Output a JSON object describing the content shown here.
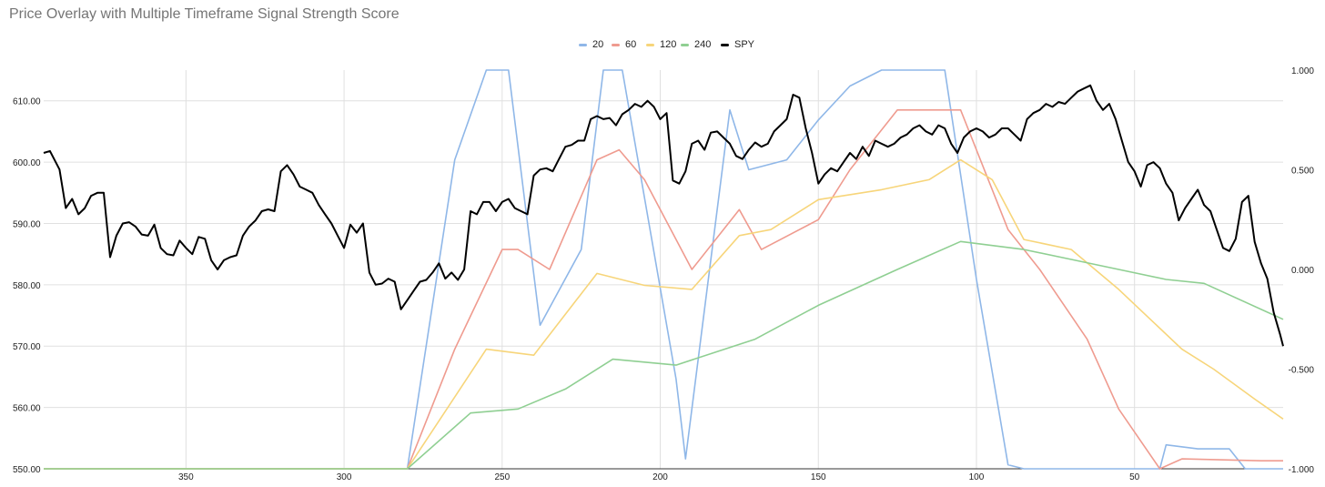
{
  "chart_data": {
    "type": "line",
    "title": "Price Overlay with Multiple Timeframe Signal Strength Score",
    "xlabel": "",
    "ylabel": "",
    "x_reversed": true,
    "xlim": [
      395,
      3
    ],
    "ylim_left": [
      550,
      615
    ],
    "ylim_right": [
      -1.0,
      1.0
    ],
    "x_ticks": [
      "350",
      "300",
      "250",
      "200",
      "150",
      "100",
      "50"
    ],
    "x_tick_values": [
      350,
      300,
      250,
      200,
      150,
      100,
      50
    ],
    "y_left_ticks": [
      "610.00",
      "600.00",
      "590.00",
      "580.00",
      "570.00",
      "560.00",
      "550.00"
    ],
    "y_left_tick_values": [
      610,
      600,
      590,
      580,
      570,
      560,
      550
    ],
    "y_right_ticks": [
      "1.000",
      "0.500",
      "0.000",
      "-0.500",
      "-1.000"
    ],
    "y_right_tick_values": [
      1.0,
      0.5,
      0.0,
      -0.5,
      -1.0
    ],
    "grid": true,
    "legend_position": "top-center",
    "series": [
      {
        "name": "20",
        "axis": "right",
        "color": "#8fb7e8",
        "points": [
          [
            395,
            -1.0
          ],
          [
            280,
            -1.0
          ],
          [
            265,
            0.55
          ],
          [
            255,
            1.0
          ],
          [
            248,
            1.0
          ],
          [
            238,
            -0.28
          ],
          [
            225,
            0.1
          ],
          [
            218,
            1.0
          ],
          [
            212,
            1.0
          ],
          [
            195,
            -0.55
          ],
          [
            192,
            -0.95
          ],
          [
            178,
            0.8
          ],
          [
            172,
            0.5
          ],
          [
            160,
            0.55
          ],
          [
            150,
            0.75
          ],
          [
            140,
            0.92
          ],
          [
            130,
            1.0
          ],
          [
            110,
            1.0
          ],
          [
            100,
            -0.05
          ],
          [
            90,
            -0.98
          ],
          [
            85,
            -1.0
          ],
          [
            42,
            -1.0
          ],
          [
            40,
            -0.88
          ],
          [
            30,
            -0.9
          ],
          [
            20,
            -0.9
          ],
          [
            15,
            -1.0
          ],
          [
            3,
            -1.0
          ]
        ]
      },
      {
        "name": "60",
        "axis": "right",
        "color": "#ef9b8f",
        "points": [
          [
            395,
            -1.0
          ],
          [
            280,
            -1.0
          ],
          [
            265,
            -0.4
          ],
          [
            250,
            0.1
          ],
          [
            245,
            0.1
          ],
          [
            235,
            0.0
          ],
          [
            220,
            0.55
          ],
          [
            213,
            0.6
          ],
          [
            205,
            0.45
          ],
          [
            190,
            0.0
          ],
          [
            175,
            0.3
          ],
          [
            168,
            0.1
          ],
          [
            150,
            0.25
          ],
          [
            140,
            0.5
          ],
          [
            125,
            0.8
          ],
          [
            115,
            0.8
          ],
          [
            105,
            0.8
          ],
          [
            90,
            0.2
          ],
          [
            80,
            0.0
          ],
          [
            65,
            -0.35
          ],
          [
            55,
            -0.7
          ],
          [
            42,
            -1.0
          ],
          [
            35,
            -0.95
          ],
          [
            10,
            -0.96
          ],
          [
            3,
            -0.96
          ]
        ]
      },
      {
        "name": "120",
        "axis": "right",
        "color": "#f7d57a",
        "points": [
          [
            395,
            -1.0
          ],
          [
            280,
            -1.0
          ],
          [
            255,
            -0.4
          ],
          [
            240,
            -0.43
          ],
          [
            220,
            -0.02
          ],
          [
            205,
            -0.08
          ],
          [
            190,
            -0.1
          ],
          [
            175,
            0.17
          ],
          [
            165,
            0.2
          ],
          [
            150,
            0.35
          ],
          [
            130,
            0.4
          ],
          [
            115,
            0.45
          ],
          [
            105,
            0.55
          ],
          [
            95,
            0.45
          ],
          [
            85,
            0.15
          ],
          [
            70,
            0.1
          ],
          [
            55,
            -0.1
          ],
          [
            45,
            -0.25
          ],
          [
            35,
            -0.4
          ],
          [
            25,
            -0.5
          ],
          [
            12,
            -0.65
          ],
          [
            3,
            -0.75
          ]
        ]
      },
      {
        "name": "240",
        "axis": "right",
        "color": "#8fcf92",
        "points": [
          [
            395,
            -1.0
          ],
          [
            280,
            -1.0
          ],
          [
            260,
            -0.72
          ],
          [
            245,
            -0.7
          ],
          [
            230,
            -0.6
          ],
          [
            215,
            -0.45
          ],
          [
            195,
            -0.48
          ],
          [
            170,
            -0.35
          ],
          [
            150,
            -0.18
          ],
          [
            125,
            0.0
          ],
          [
            105,
            0.14
          ],
          [
            85,
            0.1
          ],
          [
            70,
            0.05
          ],
          [
            55,
            0.0
          ],
          [
            40,
            -0.05
          ],
          [
            28,
            -0.07
          ],
          [
            3,
            -0.25
          ]
        ]
      },
      {
        "name": "SPY",
        "axis": "left",
        "color": "#000000",
        "points": [
          [
            395,
            601.5
          ],
          [
            393,
            601.8
          ],
          [
            392,
            600.8
          ],
          [
            390,
            598.8
          ],
          [
            388,
            592.5
          ],
          [
            386,
            594.0
          ],
          [
            384,
            591.5
          ],
          [
            382,
            592.5
          ],
          [
            380,
            594.5
          ],
          [
            378,
            595.0
          ],
          [
            376,
            595.0
          ],
          [
            374,
            584.5
          ],
          [
            372,
            588.0
          ],
          [
            370,
            590.0
          ],
          [
            368,
            590.2
          ],
          [
            366,
            589.5
          ],
          [
            364,
            588.2
          ],
          [
            362,
            588.0
          ],
          [
            360,
            589.8
          ],
          [
            358,
            586.0
          ],
          [
            356,
            585.0
          ],
          [
            354,
            584.8
          ],
          [
            352,
            587.2
          ],
          [
            350,
            586.0
          ],
          [
            348,
            585.0
          ],
          [
            346,
            587.8
          ],
          [
            344,
            587.5
          ],
          [
            342,
            584.0
          ],
          [
            340,
            582.5
          ],
          [
            338,
            584.0
          ],
          [
            336,
            584.5
          ],
          [
            334,
            584.8
          ],
          [
            332,
            588.0
          ],
          [
            330,
            589.5
          ],
          [
            328,
            590.5
          ],
          [
            326,
            592.0
          ],
          [
            324,
            592.3
          ],
          [
            322,
            592.0
          ],
          [
            320,
            598.5
          ],
          [
            318,
            599.5
          ],
          [
            316,
            598.0
          ],
          [
            314,
            596.0
          ],
          [
            312,
            595.5
          ],
          [
            310,
            595.0
          ],
          [
            308,
            593.0
          ],
          [
            306,
            591.5
          ],
          [
            304,
            590.0
          ],
          [
            302,
            588.0
          ],
          [
            300,
            586.0
          ],
          [
            298,
            589.8
          ],
          [
            296,
            588.5
          ],
          [
            294,
            590.0
          ],
          [
            292,
            582.0
          ],
          [
            290,
            580.0
          ],
          [
            288,
            580.2
          ],
          [
            286,
            581.0
          ],
          [
            284,
            580.5
          ],
          [
            282,
            576.0
          ],
          [
            280,
            577.5
          ],
          [
            278,
            579.0
          ],
          [
            276,
            580.5
          ],
          [
            274,
            580.8
          ],
          [
            272,
            582.0
          ],
          [
            270,
            583.5
          ],
          [
            268,
            581.0
          ],
          [
            266,
            582.0
          ],
          [
            264,
            580.8
          ],
          [
            262,
            582.5
          ],
          [
            260,
            592.0
          ],
          [
            258,
            591.5
          ],
          [
            256,
            593.5
          ],
          [
            254,
            593.5
          ],
          [
            252,
            592.0
          ],
          [
            250,
            593.5
          ],
          [
            248,
            594.0
          ],
          [
            246,
            592.5
          ],
          [
            244,
            592.0
          ],
          [
            242,
            591.5
          ],
          [
            240,
            597.8
          ],
          [
            238,
            598.8
          ],
          [
            236,
            599.0
          ],
          [
            234,
            598.5
          ],
          [
            232,
            600.5
          ],
          [
            230,
            602.5
          ],
          [
            228,
            602.8
          ],
          [
            226,
            603.5
          ],
          [
            224,
            603.5
          ],
          [
            222,
            607.0
          ],
          [
            220,
            607.5
          ],
          [
            218,
            607.0
          ],
          [
            216,
            607.2
          ],
          [
            214,
            606.0
          ],
          [
            212,
            607.8
          ],
          [
            210,
            608.5
          ],
          [
            208,
            609.5
          ],
          [
            206,
            609.0
          ],
          [
            204,
            610.0
          ],
          [
            202,
            609.0
          ],
          [
            200,
            607.0
          ],
          [
            198,
            608.0
          ],
          [
            196,
            597.0
          ],
          [
            194,
            596.5
          ],
          [
            192,
            598.5
          ],
          [
            190,
            603.0
          ],
          [
            188,
            603.5
          ],
          [
            186,
            602.0
          ],
          [
            184,
            604.8
          ],
          [
            182,
            605.0
          ],
          [
            180,
            604.0
          ],
          [
            178,
            603.0
          ],
          [
            176,
            601.0
          ],
          [
            174,
            600.5
          ],
          [
            172,
            602.0
          ],
          [
            170,
            603.2
          ],
          [
            168,
            602.5
          ],
          [
            166,
            603.0
          ],
          [
            164,
            605.0
          ],
          [
            162,
            606.0
          ],
          [
            160,
            607.0
          ],
          [
            158,
            611.0
          ],
          [
            156,
            610.5
          ],
          [
            154,
            605.5
          ],
          [
            152,
            601.5
          ],
          [
            150,
            596.5
          ],
          [
            148,
            598.0
          ],
          [
            146,
            599.0
          ],
          [
            144,
            598.5
          ],
          [
            142,
            600.0
          ],
          [
            140,
            601.5
          ],
          [
            138,
            600.5
          ],
          [
            136,
            602.5
          ],
          [
            134,
            601.0
          ],
          [
            132,
            603.5
          ],
          [
            130,
            603.0
          ],
          [
            128,
            602.5
          ],
          [
            126,
            603.0
          ],
          [
            124,
            604.0
          ],
          [
            122,
            604.5
          ],
          [
            120,
            605.5
          ],
          [
            118,
            606.0
          ],
          [
            116,
            605.0
          ],
          [
            114,
            604.5
          ],
          [
            112,
            606.0
          ],
          [
            110,
            605.5
          ],
          [
            108,
            603.0
          ],
          [
            106,
            601.5
          ],
          [
            104,
            604.0
          ],
          [
            102,
            605.0
          ],
          [
            100,
            605.5
          ],
          [
            98,
            605.0
          ],
          [
            96,
            604.0
          ],
          [
            94,
            604.5
          ],
          [
            92,
            605.5
          ],
          [
            90,
            605.5
          ],
          [
            88,
            604.5
          ],
          [
            86,
            603.5
          ],
          [
            84,
            607.0
          ],
          [
            82,
            608.0
          ],
          [
            80,
            608.5
          ],
          [
            78,
            609.5
          ],
          [
            76,
            609.0
          ],
          [
            74,
            609.8
          ],
          [
            72,
            609.5
          ],
          [
            70,
            610.5
          ],
          [
            68,
            611.5
          ],
          [
            66,
            612.0
          ],
          [
            64,
            612.5
          ],
          [
            62,
            610.0
          ],
          [
            60,
            608.5
          ],
          [
            58,
            609.5
          ],
          [
            56,
            607.0
          ],
          [
            54,
            603.5
          ],
          [
            52,
            600.0
          ],
          [
            50,
            598.5
          ],
          [
            48,
            596.0
          ],
          [
            46,
            599.5
          ],
          [
            44,
            600.0
          ],
          [
            42,
            599.0
          ],
          [
            40,
            596.5
          ],
          [
            38,
            595.0
          ],
          [
            36,
            590.5
          ],
          [
            34,
            592.5
          ],
          [
            32,
            594.0
          ],
          [
            30,
            595.5
          ],
          [
            28,
            593.0
          ],
          [
            26,
            592.0
          ],
          [
            24,
            589.0
          ],
          [
            22,
            586.0
          ],
          [
            20,
            585.5
          ],
          [
            18,
            587.5
          ],
          [
            16,
            593.5
          ],
          [
            14,
            594.5
          ],
          [
            12,
            587.0
          ],
          [
            10,
            583.5
          ],
          [
            8,
            581.0
          ],
          [
            6,
            575.5
          ],
          [
            4,
            572.0
          ],
          [
            3,
            570.0
          ]
        ]
      }
    ]
  }
}
